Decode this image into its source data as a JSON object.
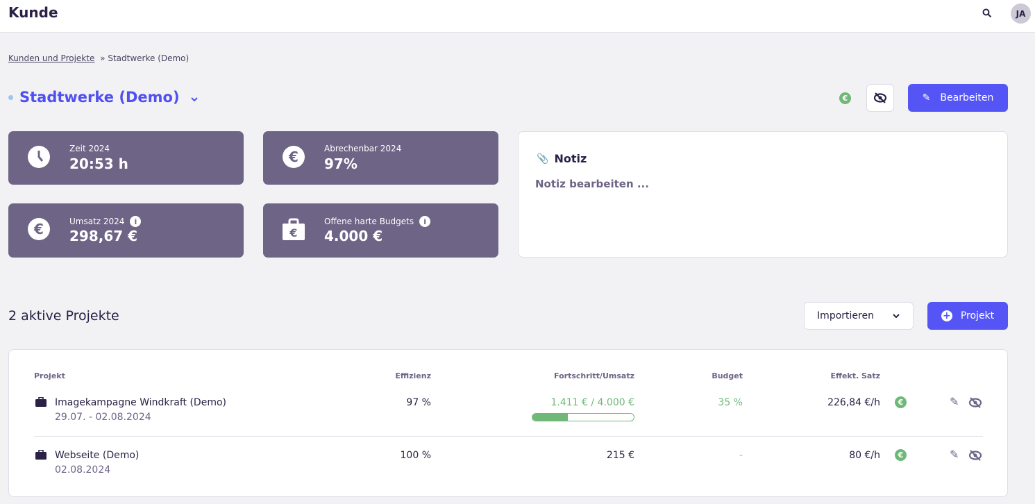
{
  "header": {
    "title": "Kunde",
    "avatar": "JA",
    "search_icon": "search-icon"
  },
  "breadcrumb": {
    "link": "Kunden und Projekte",
    "separator": "»",
    "current": "Stadtwerke (Demo)"
  },
  "client": {
    "name": "Stadtwerke (Demo)",
    "edit_label": "Bearbeiten"
  },
  "stats": [
    {
      "label": "Zeit 2024",
      "value": "20:53 h",
      "icon": "clock-icon"
    },
    {
      "label": "Abrechenbar 2024",
      "value": "97%",
      "icon": "euro-circle-icon"
    },
    {
      "label": "Umsatz 2024",
      "value": "298,67 €",
      "icon": "euro-circle-icon",
      "info": "i"
    },
    {
      "label": "Offene harte Budgets",
      "value": "4.000 €",
      "icon": "briefcase-euro-icon",
      "info": "i"
    }
  ],
  "note": {
    "title": "Notiz",
    "placeholder": "Notiz bearbeiten ..."
  },
  "projects": {
    "title": "2 aktive Projekte",
    "import_label": "Importieren",
    "add_label": "Projekt",
    "columns": [
      "Projekt",
      "Effizienz",
      "Fortschritt/Umsatz",
      "Budget",
      "Effekt. Satz"
    ],
    "rows": [
      {
        "name": "Imagekampagne Windkraft (Demo)",
        "dates": "29.07. - 02.08.2024",
        "efficiency": "97 %",
        "progress": "1.411 € / 4.000 €",
        "progress_fraction": 0.35,
        "budget": "35 %",
        "rate": "226,84 €/h"
      },
      {
        "name": "Webseite (Demo)",
        "dates": "02.08.2024",
        "efficiency": "100 %",
        "progress": "215 €",
        "budget": "-",
        "rate": "80 €/h"
      }
    ]
  },
  "colors": {
    "accent": "#5555f6",
    "card": "#6e6486",
    "green": "#6fb878"
  }
}
